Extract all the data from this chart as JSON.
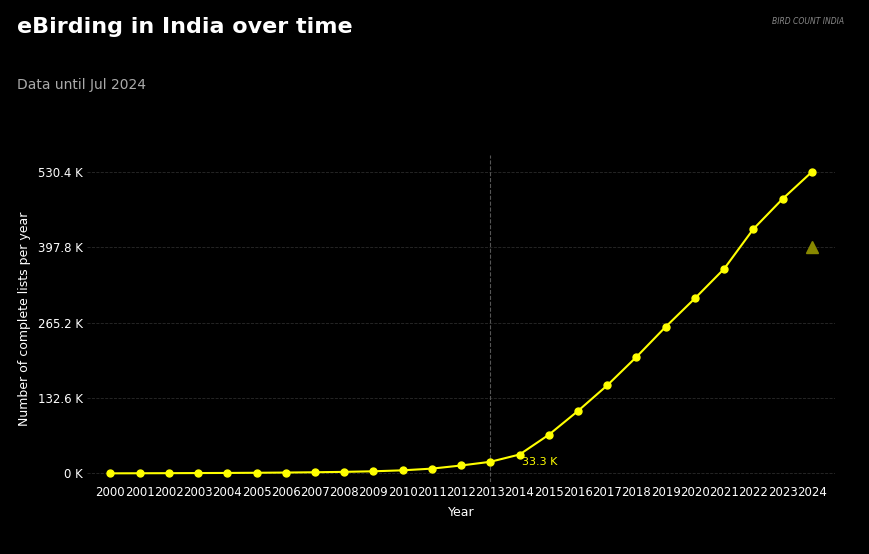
{
  "title": "eBirding in India over time",
  "subtitle": "Data until Jul 2024",
  "xlabel": "Year",
  "ylabel": "Number of complete lists per year",
  "bg_color": "#000000",
  "text_color": "#ffffff",
  "subtitle_color": "#aaaaaa",
  "line_color": "#ffff00",
  "triangle_color": "#888800",
  "vline_color": "#555555",
  "grid_color": "#2a2a2a",
  "years": [
    2000,
    2001,
    2002,
    2003,
    2004,
    2005,
    2006,
    2007,
    2008,
    2009,
    2010,
    2011,
    2012,
    2013,
    2014,
    2015,
    2016,
    2017,
    2018,
    2019,
    2020,
    2021,
    2022,
    2023,
    2024
  ],
  "values": [
    200,
    350,
    500,
    700,
    900,
    1200,
    1600,
    2100,
    2800,
    3800,
    5500,
    8500,
    14000,
    20500,
    33300,
    68000,
    110000,
    155000,
    205000,
    258000,
    308000,
    360000,
    430000,
    483000,
    530400
  ],
  "triangle_year": 2024,
  "triangle_value": 397800,
  "annotation_year": 2014,
  "annotation_value": 33300,
  "annotation_text": "33.3 K",
  "vline_year": 2013,
  "ytick_labels": [
    "0 K",
    "132.6 K",
    "265.2 K",
    "397.8 K",
    "530.4 K"
  ],
  "ytick_values": [
    0,
    132600,
    265200,
    397800,
    530400
  ],
  "title_fontsize": 16,
  "subtitle_fontsize": 10,
  "axis_label_fontsize": 9,
  "tick_fontsize": 8.5,
  "marker_size": 5
}
